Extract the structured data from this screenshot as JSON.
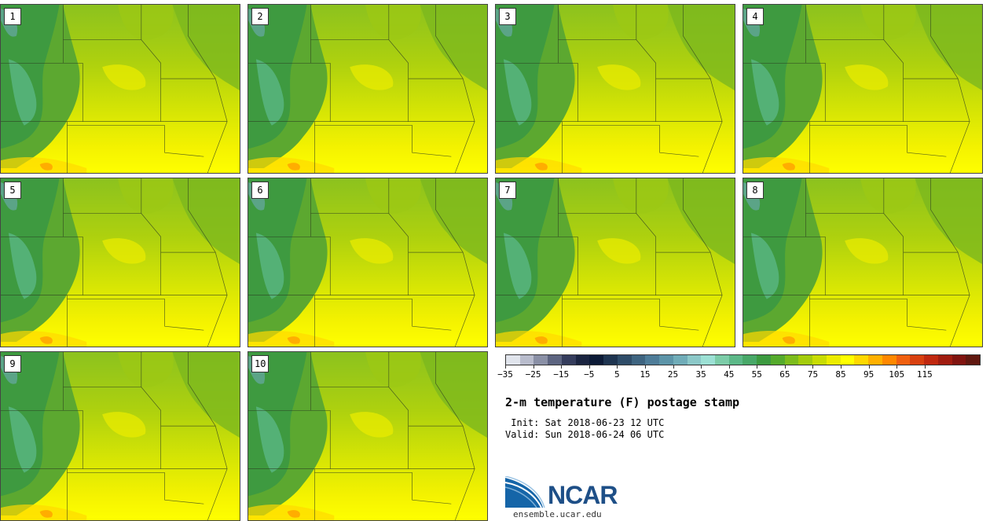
{
  "panels": [
    {
      "label": "1"
    },
    {
      "label": "2"
    },
    {
      "label": "3"
    },
    {
      "label": "4"
    },
    {
      "label": "5"
    },
    {
      "label": "6"
    },
    {
      "label": "7"
    },
    {
      "label": "8"
    },
    {
      "label": "9"
    },
    {
      "label": "10"
    }
  ],
  "colorbar": {
    "colors": [
      "#e0e4ec",
      "#b8bccc",
      "#8a90a6",
      "#5c6480",
      "#343c5c",
      "#1a2440",
      "#0c1a36",
      "#1e3450",
      "#2e4c68",
      "#3e6480",
      "#4e7c98",
      "#5c94a8",
      "#70acb8",
      "#8cc8c8",
      "#9ce0d4",
      "#7ccca8",
      "#5cb888",
      "#48a868",
      "#3c9a40",
      "#54aa2c",
      "#7cbc1c",
      "#a4cc0c",
      "#c8dc04",
      "#ecec00",
      "#ffff00",
      "#ffd800",
      "#ffb000",
      "#ff8800",
      "#f06010",
      "#d84010",
      "#c02810",
      "#a01c10",
      "#801410",
      "#601810"
    ],
    "tick_labels": [
      "−35",
      "−25",
      "−15",
      "−5",
      "5",
      "15",
      "25",
      "35",
      "45",
      "55",
      "65",
      "75",
      "85",
      "95",
      "105",
      "115"
    ]
  },
  "title": "2-m temperature (F) postage stamp",
  "init_line": " Init: Sat 2018-06-23 12 UTC",
  "valid_line": "Valid: Sun 2018-06-24 06 UTC",
  "logo_text": "NCAR",
  "website": "ensemble.ucar.edu"
}
